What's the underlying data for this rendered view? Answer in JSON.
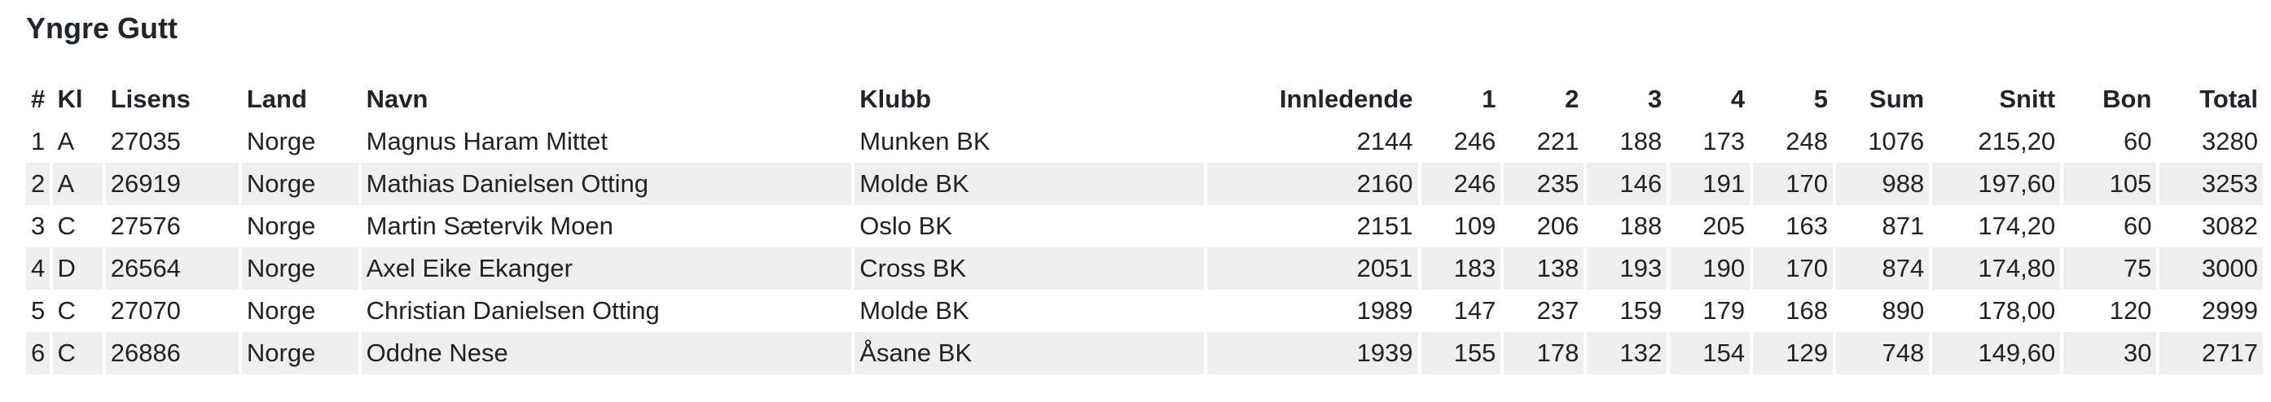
{
  "title": "Yngre Gutt",
  "columns": [
    "#",
    "Kl",
    "Lisens",
    "Land",
    "Navn",
    "Klubb",
    "Innledende",
    "1",
    "2",
    "3",
    "4",
    "5",
    "Sum",
    "Snitt",
    "Bon",
    "Total"
  ],
  "rows": [
    [
      "1",
      "A",
      "27035",
      "Norge",
      "Magnus Haram Mittet",
      "Munken BK",
      "2144",
      "246",
      "221",
      "188",
      "173",
      "248",
      "1076",
      "215,20",
      "60",
      "3280"
    ],
    [
      "2",
      "A",
      "26919",
      "Norge",
      "Mathias Danielsen Otting",
      "Molde BK",
      "2160",
      "246",
      "235",
      "146",
      "191",
      "170",
      "988",
      "197,60",
      "105",
      "3253"
    ],
    [
      "3",
      "C",
      "27576",
      "Norge",
      "Martin Sætervik Moen",
      "Oslo BK",
      "2151",
      "109",
      "206",
      "188",
      "205",
      "163",
      "871",
      "174,20",
      "60",
      "3082"
    ],
    [
      "4",
      "D",
      "26564",
      "Norge",
      "Axel Eike Ekanger",
      "Cross BK",
      "2051",
      "183",
      "138",
      "193",
      "190",
      "170",
      "874",
      "174,80",
      "75",
      "3000"
    ],
    [
      "5",
      "C",
      "27070",
      "Norge",
      "Christian Danielsen Otting",
      "Molde BK",
      "1989",
      "147",
      "237",
      "159",
      "179",
      "168",
      "890",
      "178,00",
      "120",
      "2999"
    ],
    [
      "6",
      "C",
      "26886",
      "Norge",
      "Oddne Nese",
      "Åsane BK",
      "1939",
      "155",
      "178",
      "132",
      "154",
      "129",
      "748",
      "149,60",
      "30",
      "2717"
    ]
  ],
  "colors": {
    "stripe": "#efefef",
    "text": "#212529"
  }
}
